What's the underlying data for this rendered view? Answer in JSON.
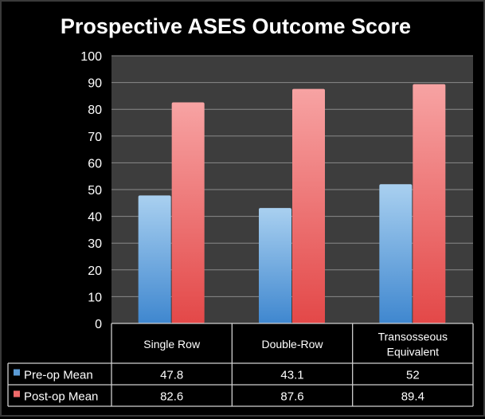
{
  "chart_data": {
    "type": "bar",
    "title": "Prospective ASES Outcome Score",
    "categories": [
      "Single Row",
      "Double-Row",
      "Transosseous Equivalent"
    ],
    "category_lines": [
      [
        "Single Row"
      ],
      [
        "Double-Row"
      ],
      [
        "Transosseous",
        "Equivalent"
      ]
    ],
    "series": [
      {
        "name": "Pre-op Mean",
        "values": [
          47.8,
          43.1,
          52
        ],
        "labels": [
          "47.8",
          "43.1",
          "52"
        ],
        "color": "#5b9bd5"
      },
      {
        "name": "Post-op Mean",
        "values": [
          82.6,
          87.6,
          89.4
        ],
        "labels": [
          "82.6",
          "87.6",
          "89.4"
        ],
        "color": "#f06a6a"
      }
    ],
    "ylim": [
      0,
      100
    ],
    "yticks": [
      0,
      10,
      20,
      30,
      40,
      50,
      60,
      70,
      80,
      90,
      100
    ],
    "grid": true,
    "legend": "data-table-bottom",
    "xlabel": "",
    "ylabel": ""
  }
}
